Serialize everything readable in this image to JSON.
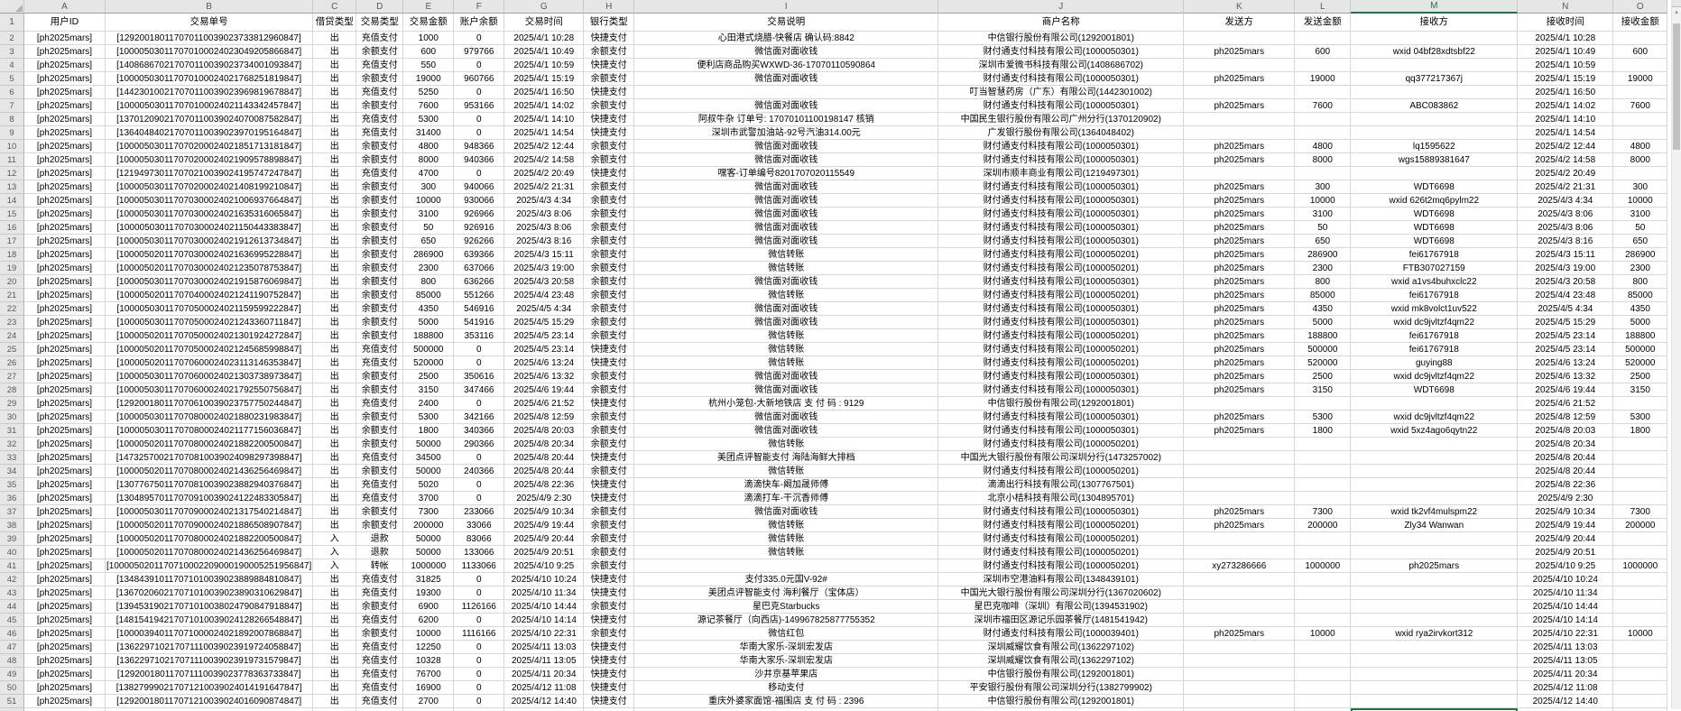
{
  "sheet": {
    "selected_column": "M",
    "active_cell": "M52",
    "accent_color": "#217346",
    "first_data_row_number": 2,
    "last_full_row_number": 51,
    "column_letters": [
      "A",
      "B",
      "C",
      "D",
      "E",
      "F",
      "G",
      "H",
      "I",
      "J",
      "K",
      "L",
      "M",
      "N",
      "O"
    ],
    "header_labels": [
      "用户ID",
      "交易单号",
      "借贷类型",
      "交易类型",
      "交易金额",
      "账户余额",
      "交易时间",
      "银行类型",
      "交易说明",
      "商户名称",
      "发送方",
      "发送金额",
      "接收方",
      "接收时间",
      "接收金额"
    ],
    "rows": [
      [
        "[ph2025mars]",
        "[129200180117070110039023733812960847]",
        "出",
        "充值支付",
        "1000",
        "0",
        "2025/4/1 10:28",
        "快捷支付",
        "心田港式烧腊-快餐店 确认码:8842",
        "中信银行股份有限公司(1292001801)",
        "",
        "",
        "",
        "2025/4/1 10:28",
        ""
      ],
      [
        "[ph2025mars]",
        "[100005030117070100024023049205866847]",
        "出",
        "余额支付",
        "600",
        "979766",
        "2025/4/1 10:49",
        "余额支付",
        "微信面对面收钱",
        "财付通支付科技有限公司(1000050301)",
        "ph2025mars",
        "600",
        "wxid 04bf28xdtsbf22",
        "2025/4/1 10:49",
        "600"
      ],
      [
        "[ph2025mars]",
        "[140868670217070110039023734001093847]",
        "出",
        "充值支付",
        "550",
        "0",
        "2025/4/1 10:59",
        "快捷支付",
        "便利店商品购买WXWD-36-17070110590864",
        "深圳市爱微书科技有限公司(1408686702)",
        "",
        "",
        "",
        "2025/4/1 10:59",
        ""
      ],
      [
        "[ph2025mars]",
        "[100005030117070100024021768251819847]",
        "出",
        "余额支付",
        "19000",
        "960766",
        "2025/4/1 15:19",
        "余额支付",
        "微信面对面收钱",
        "财付通支付科技有限公司(1000050301)",
        "ph2025mars",
        "19000",
        "qq377217367j",
        "2025/4/1 15:19",
        "19000"
      ],
      [
        "[ph2025mars]",
        "[144230100217070110039023969819678847]",
        "出",
        "充值支付",
        "5250",
        "0",
        "2025/4/1 16:50",
        "快捷支付",
        "",
        "叮当智慧药房（广东）有限公司(1442301002)",
        "",
        "",
        "",
        "2025/4/1 16:50",
        ""
      ],
      [
        "[ph2025mars]",
        "[100005030117070100024021143342457847]",
        "出",
        "余额支付",
        "7600",
        "953166",
        "2025/4/1 14:02",
        "余额支付",
        "微信面对面收钱",
        "财付通支付科技有限公司(1000050301)",
        "ph2025mars",
        "7600",
        "ABC083862",
        "2025/4/1 14:02",
        "7600"
      ],
      [
        "[ph2025mars]",
        "[137012090217070110039024070087582847]",
        "出",
        "充值支付",
        "5300",
        "0",
        "2025/4/1 14:10",
        "快捷支付",
        "阿叔牛杂 订单号: 17070101100198147 核销",
        "中国民生银行股份有限公司广州分行(1370120902)",
        "",
        "",
        "",
        "2025/4/1 14:10",
        ""
      ],
      [
        "[ph2025mars]",
        "[136404840217070110039023970195164847]",
        "出",
        "充值支付",
        "31400",
        "0",
        "2025/4/1 14:54",
        "快捷支付",
        "深圳市武警加油站-92号汽油314.00元",
        "广发银行股份有限公司(1364048402)",
        "",
        "",
        "",
        "2025/4/1 14:54",
        ""
      ],
      [
        "[ph2025mars]",
        "[100005030117070200024021851713181847]",
        "出",
        "余额支付",
        "4800",
        "948366",
        "2025/4/2 12:44",
        "余额支付",
        "微信面对面收钱",
        "财付通支付科技有限公司(1000050301)",
        "ph2025mars",
        "4800",
        "lq1595622",
        "2025/4/2 12:44",
        "4800"
      ],
      [
        "[ph2025mars]",
        "[100005030117070200024021909578898847]",
        "出",
        "余额支付",
        "8000",
        "940366",
        "2025/4/2 14:58",
        "余额支付",
        "微信面对面收钱",
        "财付通支付科技有限公司(1000050301)",
        "ph2025mars",
        "8000",
        "wgs15889381647",
        "2025/4/2 14:58",
        "8000"
      ],
      [
        "[ph2025mars]",
        "[121949730117070210039024195747247847]",
        "出",
        "充值支付",
        "4700",
        "0",
        "2025/4/2 20:49",
        "快捷支付",
        "嘿客-订单编号8201707020115549",
        "深圳市顺丰商业有限公司(1219497301)",
        "",
        "",
        "",
        "2025/4/2 20:49",
        ""
      ],
      [
        "[ph2025mars]",
        "[100005030117070200024021408199210847]",
        "出",
        "余额支付",
        "300",
        "940066",
        "2025/4/2 21:31",
        "余额支付",
        "微信面对面收钱",
        "财付通支付科技有限公司(1000050301)",
        "ph2025mars",
        "300",
        "WDT6698",
        "2025/4/2 21:31",
        "300"
      ],
      [
        "[ph2025mars]",
        "[100005030117070300024021006937664847]",
        "出",
        "余额支付",
        "10000",
        "930066",
        "2025/4/3 4:34",
        "余额支付",
        "微信面对面收钱",
        "财付通支付科技有限公司(1000050301)",
        "ph2025mars",
        "10000",
        "wxid 626t2mq6pylm22",
        "2025/4/3 4:34",
        "10000"
      ],
      [
        "[ph2025mars]",
        "[100005030117070300024021635316065847]",
        "出",
        "余额支付",
        "3100",
        "926966",
        "2025/4/3 8:06",
        "余额支付",
        "微信面对面收钱",
        "财付通支付科技有限公司(1000050301)",
        "ph2025mars",
        "3100",
        "WDT6698",
        "2025/4/3 8:06",
        "3100"
      ],
      [
        "[ph2025mars]",
        "[100005030117070300024021150443383847]",
        "出",
        "余额支付",
        "50",
        "926916",
        "2025/4/3 8:06",
        "余额支付",
        "微信面对面收钱",
        "财付通支付科技有限公司(1000050301)",
        "ph2025mars",
        "50",
        "WDT6698",
        "2025/4/3 8:06",
        "50"
      ],
      [
        "[ph2025mars]",
        "[100005030117070300024021912613734847]",
        "出",
        "余额支付",
        "650",
        "926266",
        "2025/4/3 8:16",
        "余额支付",
        "微信面对面收钱",
        "财付通支付科技有限公司(1000050301)",
        "ph2025mars",
        "650",
        "WDT6698",
        "2025/4/3 8:16",
        "650"
      ],
      [
        "[ph2025mars]",
        "[100005020117070300024021636995228847]",
        "出",
        "余额支付",
        "286900",
        "639366",
        "2025/4/3 15:11",
        "余额支付",
        "微信转账",
        "财付通支付科技有限公司(1000050201)",
        "ph2025mars",
        "286900",
        "fei61767918",
        "2025/4/3 15:11",
        "286900"
      ],
      [
        "[ph2025mars]",
        "[100005020117070300024021235078753847]",
        "出",
        "余额支付",
        "2300",
        "637066",
        "2025/4/3 19:00",
        "余额支付",
        "微信转账",
        "财付通支付科技有限公司(1000050201)",
        "ph2025mars",
        "2300",
        "FTB307027159",
        "2025/4/3 19:00",
        "2300"
      ],
      [
        "[ph2025mars]",
        "[100005030117070300024021915876069847]",
        "出",
        "余额支付",
        "800",
        "636266",
        "2025/4/3 20:58",
        "余额支付",
        "微信面对面收钱",
        "财付通支付科技有限公司(1000050301)",
        "ph2025mars",
        "800",
        "wxid a1vs4buhxclc22",
        "2025/4/3 20:58",
        "800"
      ],
      [
        "[ph2025mars]",
        "[100005020117070400024021241190752847]",
        "出",
        "余额支付",
        "85000",
        "551266",
        "2025/4/4 23:48",
        "余额支付",
        "微信转账",
        "财付通支付科技有限公司(1000050201)",
        "ph2025mars",
        "85000",
        "fei61767918",
        "2025/4/4 23:48",
        "85000"
      ],
      [
        "[ph2025mars]",
        "[100005030117070500024021159599222847]",
        "出",
        "余额支付",
        "4350",
        "546916",
        "2025/4/5 4:34",
        "余额支付",
        "微信面对面收钱",
        "财付通支付科技有限公司(1000050301)",
        "ph2025mars",
        "4350",
        "wxid mk8volct1uv522",
        "2025/4/5 4:34",
        "4350"
      ],
      [
        "[ph2025mars]",
        "[100005030117070500024021243360711847]",
        "出",
        "余额支付",
        "5000",
        "541916",
        "2025/4/5 15:29",
        "余额支付",
        "微信面对面收钱",
        "财付通支付科技有限公司(1000050301)",
        "ph2025mars",
        "5000",
        "wxid dc9jvltzf4qm22",
        "2025/4/5 15:29",
        "5000"
      ],
      [
        "[ph2025mars]",
        "[100005020117070500024021301924272847]",
        "出",
        "余额支付",
        "188800",
        "353116",
        "2025/4/5 23:14",
        "余额支付",
        "微信转账",
        "财付通支付科技有限公司(1000050201)",
        "ph2025mars",
        "188800",
        "fei61767918",
        "2025/4/5 23:14",
        "188800"
      ],
      [
        "[ph2025mars]",
        "[100005020117070500024021245685998847]",
        "出",
        "充值支付",
        "500000",
        "0",
        "2025/4/5 23:14",
        "快捷支付",
        "微信转账",
        "财付通支付科技有限公司(1000050201)",
        "ph2025mars",
        "500000",
        "fei61767918",
        "2025/4/5 23:14",
        "500000"
      ],
      [
        "[ph2025mars]",
        "[100005020117070600024023113146353847]",
        "出",
        "充值支付",
        "520000",
        "0",
        "2025/4/6 13:24",
        "快捷支付",
        "微信转账",
        "财付通支付科技有限公司(1000050201)",
        "ph2025mars",
        "520000",
        "guying88",
        "2025/4/6 13:24",
        "520000"
      ],
      [
        "[ph2025mars]",
        "[100005030117070600024021303738973847]",
        "出",
        "余额支付",
        "2500",
        "350616",
        "2025/4/6 13:32",
        "余额支付",
        "微信面对面收钱",
        "财付通支付科技有限公司(1000050301)",
        "ph2025mars",
        "2500",
        "wxid dc9jvltzf4qm22",
        "2025/4/6 13:32",
        "2500"
      ],
      [
        "[ph2025mars]",
        "[100005030117070600024021792550756847]",
        "出",
        "余额支付",
        "3150",
        "347466",
        "2025/4/6 19:44",
        "余额支付",
        "微信面对面收钱",
        "财付通支付科技有限公司(1000050301)",
        "ph2025mars",
        "3150",
        "WDT6698",
        "2025/4/6 19:44",
        "3150"
      ],
      [
        "[ph2025mars]",
        "[129200180117070610039023757750244847]",
        "出",
        "充值支付",
        "2400",
        "0",
        "2025/4/6 21:52",
        "快捷支付",
        "杭州小笼包-大新地铁店 支 付 码 : 9129",
        "中信银行股份有限公司(1292001801)",
        "",
        "",
        "",
        "2025/4/6 21:52",
        ""
      ],
      [
        "[ph2025mars]",
        "[100005030117070800024021880231983847]",
        "出",
        "余额支付",
        "5300",
        "342166",
        "2025/4/8 12:59",
        "余额支付",
        "微信面对面收钱",
        "财付通支付科技有限公司(1000050301)",
        "ph2025mars",
        "5300",
        "wxid dc9jvltzf4qm22",
        "2025/4/8 12:59",
        "5300"
      ],
      [
        "[ph2025mars]",
        "[100005030117070800024021177156036847]",
        "出",
        "余额支付",
        "1800",
        "340366",
        "2025/4/8 20:03",
        "余额支付",
        "微信面对面收钱",
        "财付通支付科技有限公司(1000050301)",
        "ph2025mars",
        "1800",
        "wxid 5xz4ago6qytn22",
        "2025/4/8 20:03",
        "1800"
      ],
      [
        "[ph2025mars]",
        "[100005020117070800024021882200500847]",
        "出",
        "余额支付",
        "50000",
        "290366",
        "2025/4/8 20:34",
        "余额支付",
        "微信转账",
        "财付通支付科技有限公司(1000050201)",
        "",
        "",
        "",
        "2025/4/8 20:34",
        ""
      ],
      [
        "[ph2025mars]",
        "[147325700217070810039024098297398847]",
        "出",
        "充值支付",
        "34500",
        "0",
        "2025/4/8 20:44",
        "快捷支付",
        "美团点评智能支付 海陆海鲜大排档",
        "中国光大银行股份有限公司深圳分行(1473257002)",
        "",
        "",
        "",
        "2025/4/8 20:44",
        ""
      ],
      [
        "[ph2025mars]",
        "[100005020117070800024021436256469847]",
        "出",
        "余额支付",
        "50000",
        "240366",
        "2025/4/8 20:44",
        "余额支付",
        "微信转账",
        "财付通支付科技有限公司(1000050201)",
        "",
        "",
        "",
        "2025/4/8 20:44",
        ""
      ],
      [
        "[ph2025mars]",
        "[130776750117070810039023882940376847]",
        "出",
        "充值支付",
        "5020",
        "0",
        "2025/4/8 22:36",
        "快捷支付",
        "滴滴快车-阚加晟师傅",
        "滴滴出行科技有限公司(1307767501)",
        "",
        "",
        "",
        "2025/4/8 22:36",
        ""
      ],
      [
        "[ph2025mars]",
        "[130489570117070910039024122483305847]",
        "出",
        "充值支付",
        "3700",
        "0",
        "2025/4/9 2:30",
        "快捷支付",
        "滴滴打车-干沉香师傅",
        "北京小桔科技有限公司(1304895701)",
        "",
        "",
        "",
        "2025/4/9 2:30",
        ""
      ],
      [
        "[ph2025mars]",
        "[100005030117070900024021317540214847]",
        "出",
        "余额支付",
        "7300",
        "233066",
        "2025/4/9 10:34",
        "余额支付",
        "微信面对面收钱",
        "财付通支付科技有限公司(1000050301)",
        "ph2025mars",
        "7300",
        "wxid tk2vf4mulspm22",
        "2025/4/9 10:34",
        "7300"
      ],
      [
        "[ph2025mars]",
        "[100005020117070900024021886508907847]",
        "出",
        "余额支付",
        "200000",
        "33066",
        "2025/4/9 19:44",
        "余额支付",
        "微信转账",
        "财付通支付科技有限公司(1000050201)",
        "ph2025mars",
        "200000",
        "Zly34 Wanwan",
        "2025/4/9 19:44",
        "200000"
      ],
      [
        "[ph2025mars]",
        "[100005020117070800024021882200500847]",
        "入",
        "退款",
        "50000",
        "83066",
        "2025/4/9 20:44",
        "余额支付",
        "微信转账",
        "财付通支付科技有限公司(1000050201)",
        "",
        "",
        "",
        "2025/4/9 20:44",
        ""
      ],
      [
        "[ph2025mars]",
        "[100005020117070800024021436256469847]",
        "入",
        "退款",
        "50000",
        "133066",
        "2025/4/9 20:51",
        "余额支付",
        "微信转账",
        "财付通支付科技有限公司(1000050201)",
        "",
        "",
        "",
        "2025/4/9 20:51",
        ""
      ],
      [
        "[ph2025mars]",
        "[1000050201170710002209000190005251956847]",
        "入",
        "转帐",
        "1000000",
        "1133066",
        "2025/4/10 9:25",
        "余额支付",
        "",
        "财付通支付科技有限公司(1000050201)",
        "xy273286666",
        "1000000",
        "ph2025mars",
        "2025/4/10 9:25",
        "1000000"
      ],
      [
        "[ph2025mars]",
        "[134843910117071010039023889884810847]",
        "出",
        "充值支付",
        "31825",
        "0",
        "2025/4/10 10:24",
        "快捷支付",
        "支付335.0元国V-92#",
        "深圳市空港油料有限公司(1348439101)",
        "",
        "",
        "",
        "2025/4/10 10:24",
        ""
      ],
      [
        "[ph2025mars]",
        "[136702060217071010039023890310629847]",
        "出",
        "充值支付",
        "19300",
        "0",
        "2025/4/10 11:34",
        "快捷支付",
        "美团点评智能支付 海利餐厅（宝体店）",
        "中国光大银行股份有限公司深圳分行(1367020602)",
        "",
        "",
        "",
        "2025/4/10 11:34",
        ""
      ],
      [
        "[ph2025mars]",
        "[139453190217071010038024790847918847]",
        "出",
        "余额支付",
        "6900",
        "1126166",
        "2025/4/10 14:44",
        "余额支付",
        "星巴克Starbucks",
        "星巴克咖啡（深圳）有限公司(1394531902)",
        "",
        "",
        "",
        "2025/4/10 14:44",
        ""
      ],
      [
        "[ph2025mars]",
        "[148154194217071010039024128266548847]",
        "出",
        "充值支付",
        "6200",
        "0",
        "2025/4/10 14:14",
        "快捷支付",
        "源记茶餐厅（向西店)-149967825877755352",
        "深圳市福田区源记乐园茶餐厅(1481541942)",
        "",
        "",
        "",
        "2025/4/10 14:14",
        ""
      ],
      [
        "[ph2025mars]",
        "[100003940117071000024021892007868847]",
        "出",
        "余额支付",
        "10000",
        "1116166",
        "2025/4/10 22:31",
        "余额支付",
        "微信红包",
        "财付通支付科技有限公司(1000039401)",
        "ph2025mars",
        "10000",
        "wxid rya2irvkort312",
        "2025/4/10 22:31",
        "10000"
      ],
      [
        "[ph2025mars]",
        "[136229710217071110039023919724058847]",
        "出",
        "充值支付",
        "12250",
        "0",
        "2025/4/11 13:03",
        "快捷支付",
        "华南大家乐-深圳宏发店",
        "深圳威耀饮食有限公司(1362297102)",
        "",
        "",
        "",
        "2025/4/11 13:03",
        ""
      ],
      [
        "[ph2025mars]",
        "[136229710217071110039023919731579847]",
        "出",
        "充值支付",
        "10328",
        "0",
        "2025/4/11 13:05",
        "快捷支付",
        "华南大家乐-深圳宏发店",
        "深圳威耀饮食有限公司(1362297102)",
        "",
        "",
        "",
        "2025/4/11 13:05",
        ""
      ],
      [
        "[ph2025mars]",
        "[129200180117071110039023778363733847]",
        "出",
        "充值支付",
        "76700",
        "0",
        "2025/4/11 20:34",
        "快捷支付",
        "沙井京基苹果店",
        "中信银行股份有限公司(1292001801)",
        "",
        "",
        "",
        "2025/4/11 20:34",
        ""
      ],
      [
        "[ph2025mars]",
        "[138279990217071210039024014191647847]",
        "出",
        "充值支付",
        "16900",
        "0",
        "2025/4/12 11:08",
        "快捷支付",
        "移动支付",
        "平安银行股份有限公司深圳分行(1382799902)",
        "",
        "",
        "",
        "2025/4/12 11:08",
        ""
      ],
      [
        "[ph2025mars]",
        "[129200180117071210039024016090874847]",
        "出",
        "充值支付",
        "2700",
        "0",
        "2025/4/12 14:40",
        "快捷支付",
        "重庆外婆家面馆-福围店 支 付 码 : 2396",
        "中信银行股份有限公司(1292001801)",
        "",
        "",
        "",
        "2025/4/12 14:40",
        ""
      ]
    ]
  },
  "scrollbar": {
    "up_icon": "▲"
  }
}
